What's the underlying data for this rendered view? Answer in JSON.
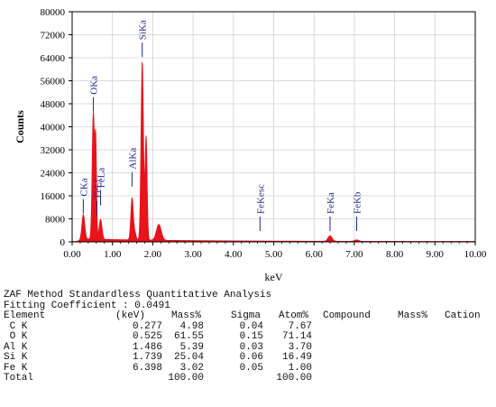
{
  "chart_data": {
    "type": "line",
    "ylabel": "Counts",
    "xlabel": "keV",
    "xlim": [
      0,
      10
    ],
    "ylim": [
      0,
      80000
    ],
    "y_ticks": [
      "0",
      "8000",
      "16000",
      "24000",
      "32000",
      "40000",
      "48000",
      "56000",
      "64000",
      "72000",
      "80000"
    ],
    "x_ticks": [
      "0.00",
      "1.00",
      "2.00",
      "3.00",
      "4.00",
      "5.00",
      "6.00",
      "7.00",
      "8.00",
      "9.00",
      "10.00"
    ],
    "series_color": "#e8131b",
    "label_color": "#1f2a8a",
    "peaks": [
      {
        "x": 0.277,
        "y": 8600,
        "w": 0.035
      },
      {
        "x": 0.525,
        "y": 44000,
        "w": 0.028
      },
      {
        "x": 0.585,
        "y": 33000,
        "w": 0.02
      },
      {
        "x": 0.705,
        "y": 7000,
        "w": 0.035
      },
      {
        "x": 1.486,
        "y": 14500,
        "w": 0.03
      },
      {
        "x": 1.555,
        "y": 2500,
        "w": 0.03
      },
      {
        "x": 1.739,
        "y": 62000,
        "w": 0.03
      },
      {
        "x": 1.835,
        "y": 36000,
        "w": 0.025
      },
      {
        "x": 2.15,
        "y": 5500,
        "w": 0.06
      },
      {
        "x": 6.398,
        "y": 1900,
        "w": 0.05
      },
      {
        "x": 7.058,
        "y": 500,
        "w": 0.05
      }
    ],
    "annotations": [
      {
        "text": "CKa",
        "x": 0.277,
        "y": 8600
      },
      {
        "text": "OKa",
        "x": 0.525,
        "y": 44000
      },
      {
        "text": "FeLl",
        "x": 0.615,
        "y": 8000
      },
      {
        "text": "FeLa",
        "x": 0.705,
        "y": 11500
      },
      {
        "text": "AlKa",
        "x": 1.486,
        "y": 18000
      },
      {
        "text": "SiKa",
        "x": 1.739,
        "y": 63000
      },
      {
        "text": "FeKesc",
        "x": 4.66,
        "y": 2500
      },
      {
        "text": "FeKa",
        "x": 6.398,
        "y": 2500
      },
      {
        "text": "FeKb",
        "x": 7.058,
        "y": 2500
      }
    ]
  },
  "report": {
    "title": "ZAF Method Standardless Quantitative Analysis",
    "fitting": "Fitting Coefficient : 0.0491",
    "headers": [
      "Element",
      "(keV)",
      "Mass%",
      "Sigma",
      "Atom%",
      "Compound",
      "Mass%",
      "Cation"
    ],
    "rows": [
      {
        "element": "C K",
        "kev": "0.277",
        "mass": "4.98",
        "sigma": "0.04",
        "atom": "7.67"
      },
      {
        "element": "O K",
        "kev": "0.525",
        "mass": "61.55",
        "sigma": "0.15",
        "atom": "71.14"
      },
      {
        "element": "Al K",
        "kev": "1.486",
        "mass": "5.39",
        "sigma": "0.03",
        "atom": "3.70"
      },
      {
        "element": "Si K",
        "kev": "1.739",
        "mass": "25.04",
        "sigma": "0.06",
        "atom": "16.49"
      },
      {
        "element": "Fe K",
        "kev": "6.398",
        "mass": "3.02",
        "sigma": "0.05",
        "atom": "1.00"
      }
    ],
    "total": {
      "label": "Total",
      "mass": "100.00",
      "atom": "100.00"
    }
  }
}
